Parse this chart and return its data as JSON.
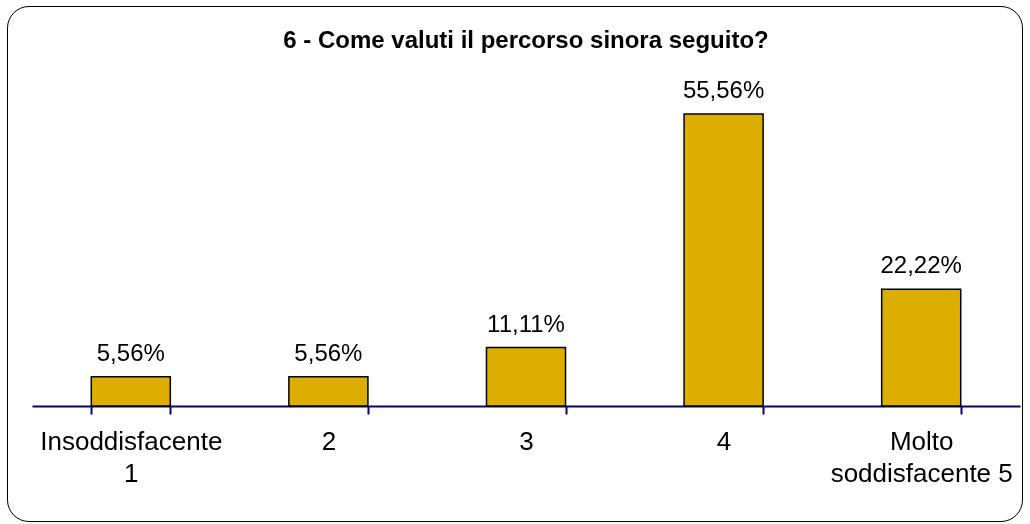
{
  "chart_data": {
    "type": "bar",
    "title": "6 - Come valuti il percorso sinora seguito?",
    "categories": [
      "Insoddisfacente 1",
      "2",
      "3",
      "4",
      "Molto soddisfacente 5"
    ],
    "values": [
      5.56,
      5.56,
      11.11,
      55.56,
      22.22
    ],
    "value_labels": [
      "5,56%",
      "5,56%",
      "11,11%",
      "55,56%",
      "22,22%"
    ],
    "color": "#dcae00",
    "tick_labels": "x"
  }
}
